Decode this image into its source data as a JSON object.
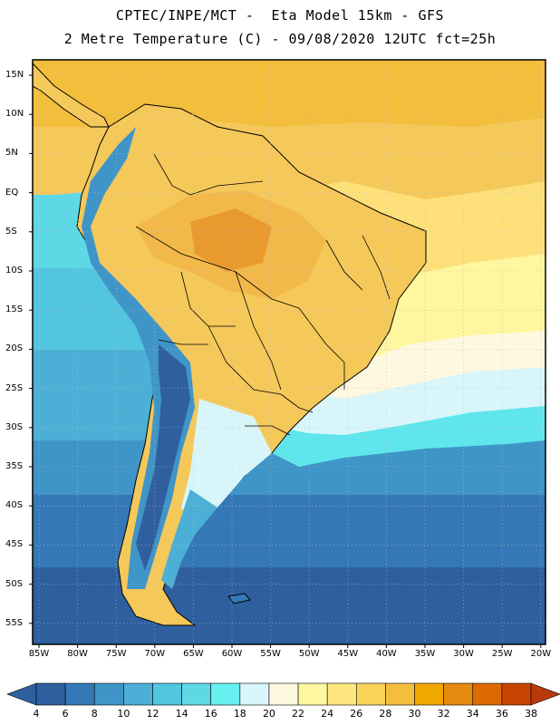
{
  "header": {
    "line1": "CPTEC/INPE/MCT -  Eta Model 15km - GFS",
    "line2": "2 Metre Temperature (C) - 09/08/2020 12UTC fct=25h"
  },
  "axes": {
    "lat_labels": [
      "15N",
      "10N",
      "5N",
      "EQ",
      "5S",
      "10S",
      "15S",
      "20S",
      "25S",
      "30S",
      "35S",
      "40S",
      "45S",
      "50S",
      "55S"
    ],
    "lon_labels": [
      "85W",
      "80W",
      "75W",
      "70W",
      "65W",
      "60W",
      "55W",
      "50W",
      "45W",
      "40W",
      "35W",
      "30W",
      "25W",
      "20W"
    ]
  },
  "colorbar": {
    "ticks": [
      "4",
      "6",
      "8",
      "10",
      "12",
      "14",
      "16",
      "18",
      "20",
      "22",
      "24",
      "26",
      "28",
      "30",
      "32",
      "34",
      "36",
      "38"
    ],
    "colors": [
      "#2f5f9f",
      "#3578b7",
      "#3f95c8",
      "#4cb0d6",
      "#52c5df",
      "#5fd8e6",
      "#66f0f0",
      "#d8f6fa",
      "#fff8e0",
      "#fff6a0",
      "#ffe680",
      "#f9d35a",
      "#f2be3c",
      "#f0a700",
      "#e48a10",
      "#dd6a00",
      "#c84400",
      "#2f5f9f",
      "#b83a0a"
    ]
  },
  "map_colors": {
    "ocean_deep": "#2f5f9f",
    "ocean_mid": "#3578b7",
    "ocean_light": "#4cb0d6",
    "ocean_cyan": "#5fe6ec",
    "ocean_pale": "#d8f6fa",
    "warm_pale": "#fff6a0",
    "warm_yellow": "#fde07a",
    "warm_orange": "#f5c85a",
    "land_orange": "#f2b84a",
    "hot": "#e89a2e",
    "border": "#000000",
    "grid": "#bbbbbb"
  }
}
